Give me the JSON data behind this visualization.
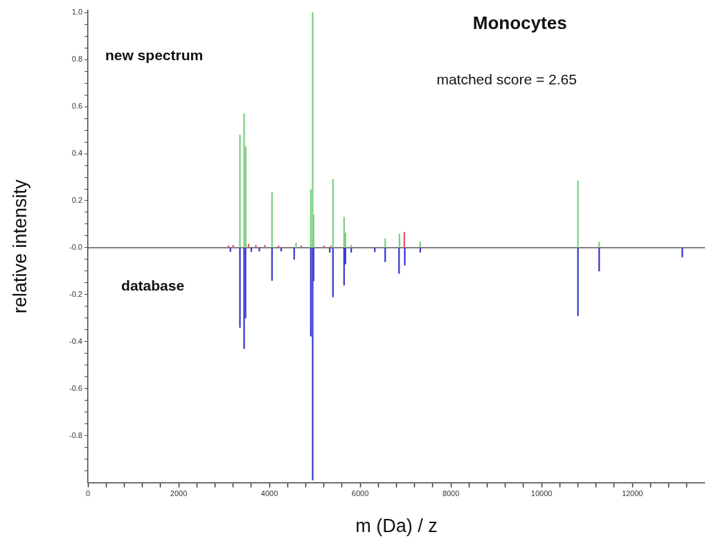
{
  "chart_data": {
    "type": "bar",
    "title": "Monocytes",
    "xlabel": "m (Da) / z",
    "ylabel": "relative intensity",
    "annotations": [
      "new spectrum",
      "database",
      "matched score = 2.65"
    ],
    "series": [
      {
        "color": "#7ccf7c",
        "x": [
          3350,
          3442,
          3477,
          4057,
          4587,
          4912,
          4953,
          4973,
          5400,
          5645,
          5675,
          5803,
          6551,
          6866,
          7324,
          10800,
          11268
        ],
        "values": [
          0.48,
          0.57,
          0.43,
          0.235,
          0.02,
          0.247,
          1.0,
          0.14,
          0.29,
          0.13,
          0.063,
          0.01,
          0.038,
          0.058,
          0.024,
          0.284,
          0.024
        ]
      },
      {
        "color": "#e05a5a",
        "x": [
          3100,
          3200,
          3540,
          3700,
          3900,
          4200,
          4700,
          5200,
          5350,
          6973
        ],
        "values": [
          0.008,
          0.01,
          0.015,
          0.01,
          0.01,
          0.008,
          0.008,
          0.008,
          0.006,
          0.066
        ]
      },
      {
        "color": "#3a3ad0",
        "x": [
          3140,
          3350,
          3442,
          3473,
          3600,
          3777,
          4057,
          4260,
          4545,
          4912,
          4953,
          4973,
          5330,
          5400,
          5645,
          5675,
          5803,
          6322,
          6551,
          6857,
          6983,
          7324,
          10800,
          11268,
          13100
        ],
        "values": [
          -0.017,
          -0.34,
          -0.43,
          -0.3,
          -0.017,
          -0.015,
          -0.14,
          -0.015,
          -0.05,
          -0.377,
          -0.99,
          -0.142,
          -0.02,
          -0.21,
          -0.16,
          -0.07,
          -0.02,
          -0.018,
          -0.06,
          -0.11,
          -0.075,
          -0.02,
          -0.29,
          -0.1,
          -0.04
        ]
      }
    ],
    "xlim": [
      0,
      13600
    ],
    "xticks": [
      0,
      {
        "value": 400,
        "label": null
      },
      {
        "value": 800,
        "label": null
      },
      {
        "value": 1200,
        "label": null
      },
      {
        "value": 1600,
        "label": null
      },
      2000,
      {
        "value": 2400,
        "label": null
      },
      {
        "value": 2800,
        "label": null
      },
      {
        "value": 3200,
        "label": null
      },
      {
        "value": 3600,
        "label": null
      },
      4000,
      {
        "value": 4400,
        "label": null
      },
      {
        "value": 4800,
        "label": null
      },
      {
        "value": 5200,
        "label": null
      },
      {
        "value": 5600,
        "label": null
      },
      6000,
      {
        "value": 6400,
        "label": null
      },
      {
        "value": 6800,
        "label": null
      },
      {
        "value": 7200,
        "label": null
      },
      {
        "value": 7600,
        "label": null
      },
      8000,
      {
        "value": 8400,
        "label": null
      },
      {
        "value": 8800,
        "label": null
      },
      {
        "value": 9200,
        "label": null
      },
      {
        "value": 9600,
        "label": null
      },
      10000,
      {
        "value": 10400,
        "label": null
      },
      {
        "value": 10800,
        "label": null
      },
      {
        "value": 11200,
        "label": null
      },
      {
        "value": 11600,
        "label": null
      },
      12000,
      {
        "value": 12400,
        "label": null
      },
      {
        "value": 12800,
        "label": null
      },
      {
        "value": 13200,
        "label": null
      }
    ],
    "ylim": [
      -1.0,
      1.01
    ],
    "yticks": [
      {
        "value": -0.95,
        "label": null
      },
      {
        "value": -0.9,
        "label": null
      },
      {
        "value": -0.85,
        "label": null
      },
      -0.8,
      {
        "value": -0.75,
        "label": null
      },
      {
        "value": -0.7,
        "label": null
      },
      {
        "value": -0.65,
        "label": null
      },
      -0.6,
      {
        "value": -0.55,
        "label": null
      },
      {
        "value": -0.5,
        "label": null
      },
      {
        "value": -0.45,
        "label": null
      },
      -0.4,
      {
        "value": -0.35,
        "label": null
      },
      {
        "value": -0.3,
        "label": null
      },
      {
        "value": -0.25,
        "label": null
      },
      -0.2,
      {
        "value": -0.15,
        "label": null
      },
      {
        "value": -0.1,
        "label": null
      },
      {
        "value": -0.05,
        "label": null
      },
      {
        "value": 0,
        "label": "-0.0"
      },
      {
        "value": 0.05,
        "label": null
      },
      {
        "value": 0.1,
        "label": null
      },
      {
        "value": 0.15,
        "label": null
      },
      0.2,
      {
        "value": 0.25,
        "label": null
      },
      {
        "value": 0.3,
        "label": null
      },
      {
        "value": 0.35,
        "label": null
      },
      0.4,
      {
        "value": 0.45,
        "label": null
      },
      {
        "value": 0.5,
        "label": null
      },
      {
        "value": 0.55,
        "label": null
      },
      0.6,
      {
        "value": 0.65,
        "label": null
      },
      {
        "value": 0.7,
        "label": null
      },
      {
        "value": 0.75,
        "label": null
      },
      0.8,
      {
        "value": 0.85,
        "label": null
      },
      {
        "value": 0.9,
        "label": null
      },
      {
        "value": 0.95,
        "label": null
      },
      {
        "value": 1.0,
        "label": "1.0"
      }
    ],
    "ref_lines": [
      {
        "axis": "y",
        "value": 0,
        "color": "#555555"
      }
    ],
    "grid": false,
    "legend": false
  }
}
